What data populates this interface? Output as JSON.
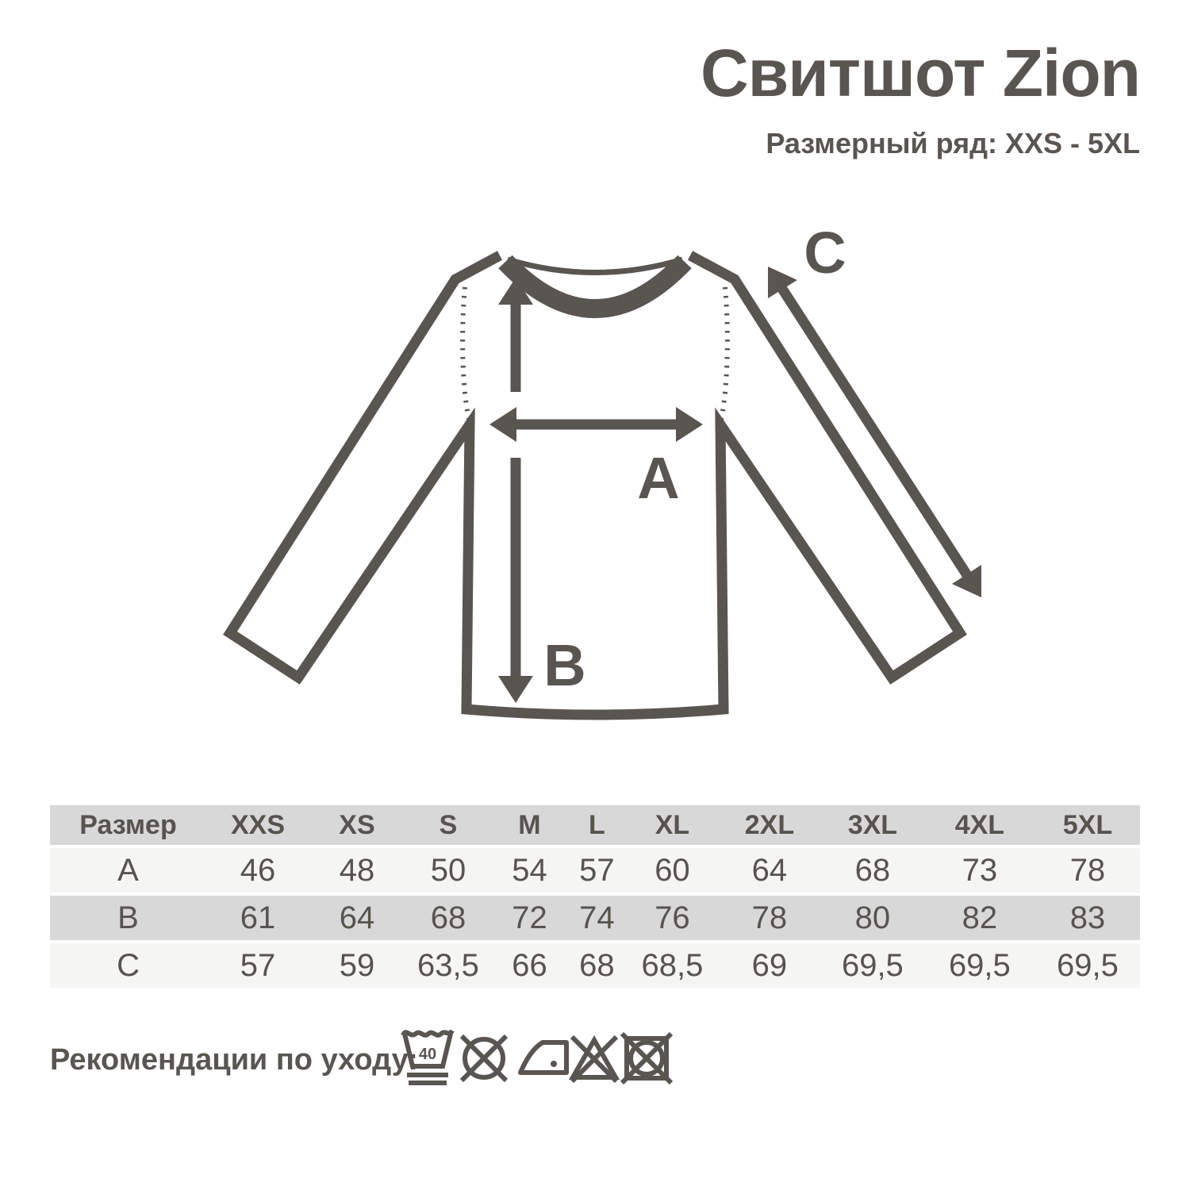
{
  "page": {
    "title": "Свитшот Zion",
    "subtitle": "Размерный ряд: XXS - 5XL"
  },
  "diagram": {
    "label_a": "A",
    "label_b": "B",
    "label_c": "C"
  },
  "size_table": {
    "header_label": "Размер",
    "sizes": [
      "XXS",
      "XS",
      "S",
      "M",
      "L",
      "XL",
      "2XL",
      "3XL",
      "4XL",
      "5XL"
    ],
    "rows": [
      {
        "label": "A",
        "values": [
          "46",
          "48",
          "50",
          "54",
          "57",
          "60",
          "64",
          "68",
          "73",
          "78"
        ]
      },
      {
        "label": "B",
        "values": [
          "61",
          "64",
          "68",
          "72",
          "74",
          "76",
          "78",
          "80",
          "82",
          "83"
        ]
      },
      {
        "label": "C",
        "values": [
          "57",
          "59",
          "63,5",
          "66",
          "68",
          "68,5",
          "69",
          "69,5",
          "69,5",
          "69,5"
        ]
      }
    ]
  },
  "care": {
    "label": "Рекомендации по уходу:",
    "wash_temp": "40",
    "icons": [
      "wash-40-gentle",
      "do-not-dry-clean",
      "iron-low-temperature",
      "do-not-bleach",
      "do-not-tumble-dry"
    ]
  },
  "colors": {
    "ink": "#595551",
    "table_header_bg": "#d8d8d8",
    "table_row_light": "#f5f5f4"
  }
}
